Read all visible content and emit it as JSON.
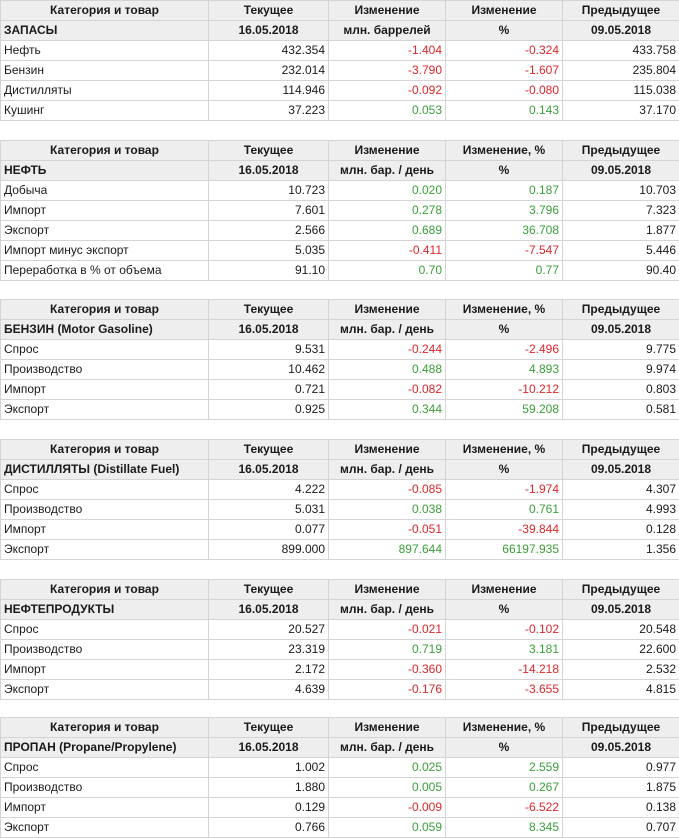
{
  "headers": {
    "col1": "Категория и товар",
    "col2": "Текущее",
    "col3": "Изменение",
    "col4_plain": "Изменение",
    "col4_pct": "Изменение, %",
    "col5": "Предыдущее",
    "cur_date": "16.05.2018",
    "prev_date": "09.05.2018",
    "unit_mbbl": "млн. баррелей",
    "unit_mbd": "млн. бар. / день",
    "pct": "%"
  },
  "tables": [
    {
      "section": "ЗАПАСЫ",
      "rows": [
        {
          "name": "Нефть",
          "cur": "432.354",
          "chg": "-1.404",
          "pct": "-0.324",
          "prev": "433.758"
        },
        {
          "name": "Бензин",
          "cur": "232.014",
          "chg": "-3.790",
          "pct": "-1.607",
          "prev": "235.804"
        },
        {
          "name": "Дистилляты",
          "cur": "114.946",
          "chg": "-0.092",
          "pct": "-0.080",
          "prev": "115.038"
        },
        {
          "name": "Кушинг",
          "cur": "37.223",
          "chg": "0.053",
          "pct": "0.143",
          "prev": "37.170"
        }
      ]
    },
    {
      "section": "НЕФТЬ",
      "rows": [
        {
          "name": "Добыча",
          "cur": "10.723",
          "chg": "0.020",
          "pct": "0.187",
          "prev": "10.703"
        },
        {
          "name": "Импорт",
          "cur": "7.601",
          "chg": "0.278",
          "pct": "3.796",
          "prev": "7.323"
        },
        {
          "name": "Экспорт",
          "cur": "2.566",
          "chg": "0.689",
          "pct": "36.708",
          "prev": "1.877"
        },
        {
          "name": "Импорт минус экспорт",
          "cur": "5.035",
          "chg": "-0.411",
          "pct": "-7.547",
          "prev": "5.446"
        },
        {
          "name": "Переработка в % от объема",
          "cur": "91.10",
          "chg": "0.70",
          "pct": "0.77",
          "prev": "90.40"
        }
      ]
    },
    {
      "section": "БЕНЗИН (Motor Gasoline)",
      "rows": [
        {
          "name": "Спрос",
          "cur": "9.531",
          "chg": "-0.244",
          "pct": "-2.496",
          "prev": "9.775"
        },
        {
          "name": "Производство",
          "cur": "10.462",
          "chg": "0.488",
          "pct": "4.893",
          "prev": "9.974"
        },
        {
          "name": "Импорт",
          "cur": "0.721",
          "chg": "-0.082",
          "pct": "-10.212",
          "prev": "0.803"
        },
        {
          "name": "Экспорт",
          "cur": "0.925",
          "chg": "0.344",
          "pct": "59.208",
          "prev": "0.581"
        }
      ]
    },
    {
      "section": "ДИСТИЛЛЯТЫ (Distillate Fuel)",
      "rows": [
        {
          "name": "Спрос",
          "cur": "4.222",
          "chg": "-0.085",
          "pct": "-1.974",
          "prev": "4.307"
        },
        {
          "name": "Производство",
          "cur": "5.031",
          "chg": "0.038",
          "pct": "0.761",
          "prev": "4.993"
        },
        {
          "name": "Импорт",
          "cur": "0.077",
          "chg": "-0.051",
          "pct": "-39.844",
          "prev": "0.128"
        },
        {
          "name": "Экспорт",
          "cur": "899.000",
          "chg": "897.644",
          "pct": "66197.935",
          "prev": "1.356"
        }
      ]
    },
    {
      "section": "НЕФТЕПРОДУКТЫ",
      "rows": [
        {
          "name": "Спрос",
          "cur": "20.527",
          "chg": "-0.021",
          "pct": "-0.102",
          "prev": "20.548"
        },
        {
          "name": "Производство",
          "cur": "23.319",
          "chg": "0.719",
          "pct": "3.181",
          "prev": "22.600"
        },
        {
          "name": "Импорт",
          "cur": "2.172",
          "chg": "-0.360",
          "pct": "-14.218",
          "prev": "2.532"
        },
        {
          "name": "Экспорт",
          "cur": "4.639",
          "chg": "-0.176",
          "pct": "-3.655",
          "prev": "4.815"
        }
      ]
    },
    {
      "section": "ПРОПАН (Propane/Propylene)",
      "rows": [
        {
          "name": "Спрос",
          "cur": "1.002",
          "chg": "0.025",
          "pct": "2.559",
          "prev": "0.977"
        },
        {
          "name": "Производство",
          "cur": "1.880",
          "chg": "0.005",
          "pct": "0.267",
          "prev": "1.875"
        },
        {
          "name": "Импорт",
          "cur": "0.129",
          "chg": "-0.009",
          "pct": "-6.522",
          "prev": "0.138"
        },
        {
          "name": "Экспорт",
          "cur": "0.766",
          "chg": "0.059",
          "pct": "8.345",
          "prev": "0.707"
        }
      ]
    }
  ]
}
